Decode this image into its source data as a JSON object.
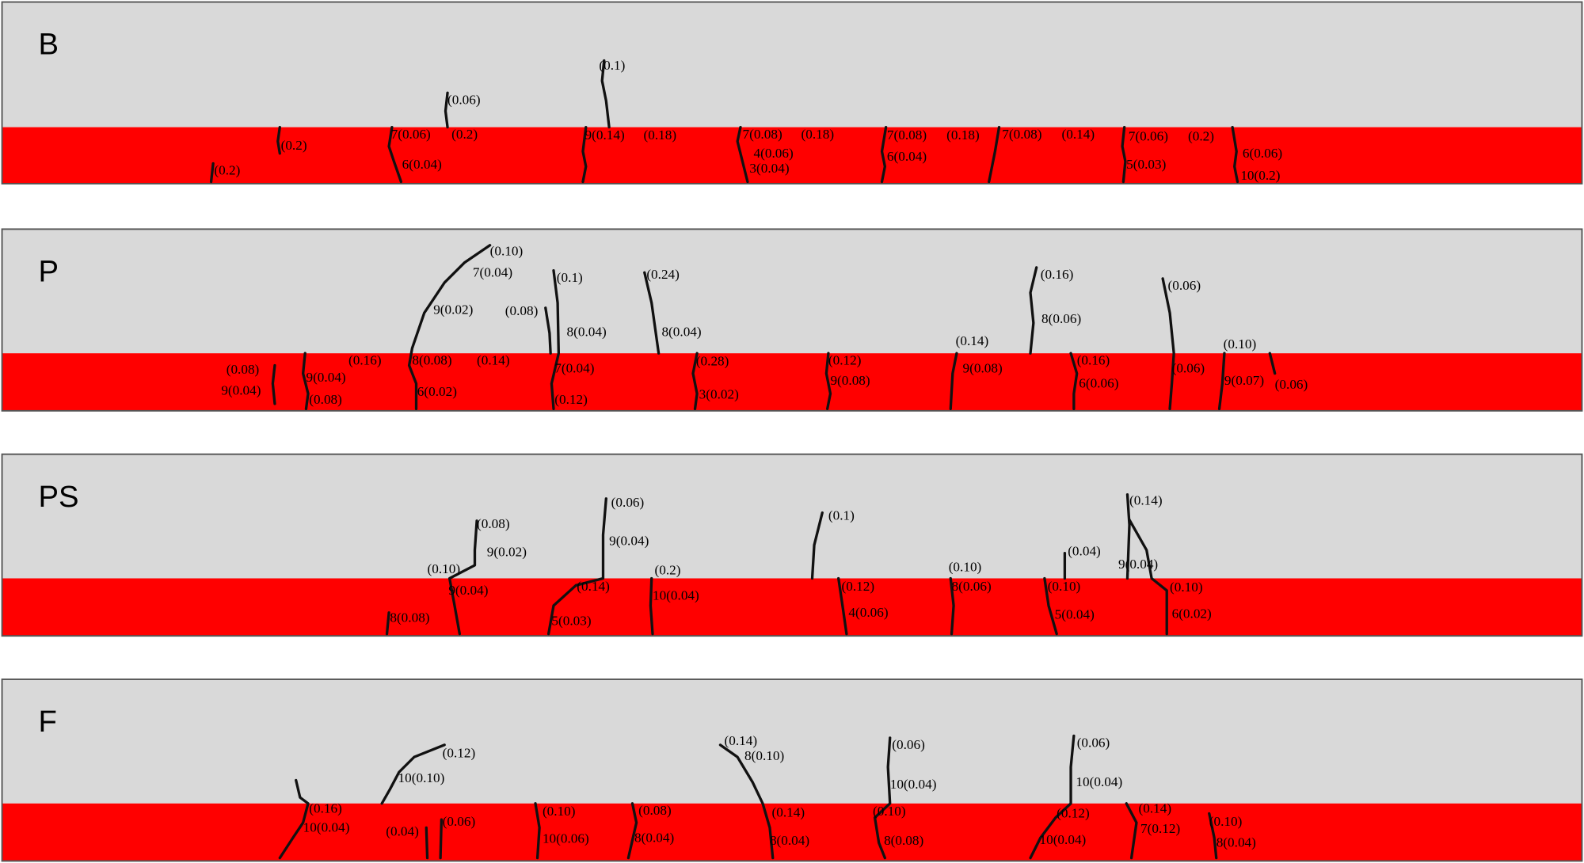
{
  "panels": [
    {
      "label": "B",
      "annotations": [
        "(0.1)",
        "(0.06)",
        "(0.2)",
        "7(0.06)",
        "(0.2)",
        "6(0.04)",
        "(0.2)",
        "9(0.14)",
        "(0.18)",
        "7(0.08)",
        "(0.18)",
        "4(0.06)",
        "3(0.04)",
        "7(0.08)",
        "(0.18)",
        "6(0.04)",
        "7(0.08)",
        "(0.14)",
        "7(0.06)",
        "(0.2)",
        "5(0.03)",
        "6(0.06)",
        "10(0.2)"
      ]
    },
    {
      "label": "P",
      "annotations": [
        "(0.10)",
        "7(0.04)",
        "9(0.02)",
        "(0.08)",
        "(0.1)",
        "8(0.04)",
        "(0.24)",
        "8(0.04)",
        "(0.16)",
        "8(0.06)",
        "(0.06)",
        "(0.14)",
        "(0.10)",
        "(0.08)",
        "9(0.04)",
        "9(0.04)",
        "(0.08)",
        "(0.16)",
        "8(0.08)",
        "(0.14)",
        "6(0.02)",
        "7(0.04)",
        "(0.12)",
        "(0.28)",
        "3(0.02)",
        "(0.12)",
        "9(0.08)",
        "9(0.08)",
        "(0.16)",
        "6(0.06)",
        "(0.06)",
        "9(0.07)",
        "(0.06)"
      ]
    },
    {
      "label": "PS",
      "annotations": [
        "(0.08)",
        "9(0.02)",
        "(0.06)",
        "9(0.04)",
        "(0.1)",
        "(0.14)",
        "(0.04)",
        "9(0.04)",
        "(0.10)",
        "(0.2)",
        "(0.10)",
        "9(0.04)",
        "(0.14)",
        "10(0.04)",
        "(0.12)",
        "8(0.06)",
        "(0.10)",
        "(0.10)",
        "8(0.08)",
        "5(0.03)",
        "4(0.06)",
        "5(0.04)",
        "6(0.02)"
      ]
    },
    {
      "label": "F",
      "annotations": [
        "(0.12)",
        "10(0.10)",
        "(0.14)",
        "8(0.10)",
        "(0.06)",
        "10(0.04)",
        "(0.06)",
        "10(0.04)",
        "(0.16)",
        "10(0.04)",
        "(0.04)",
        "(0.06)",
        "(0.10)",
        "10(0.06)",
        "(0.08)",
        "8(0.04)",
        "(0.14)",
        "8(0.04)",
        "(0.10)",
        "8(0.08)",
        "(0.12)",
        "10(0.04)",
        "(0.14)",
        "7(0.12)",
        "(0.10)",
        "8(0.04)"
      ]
    }
  ]
}
